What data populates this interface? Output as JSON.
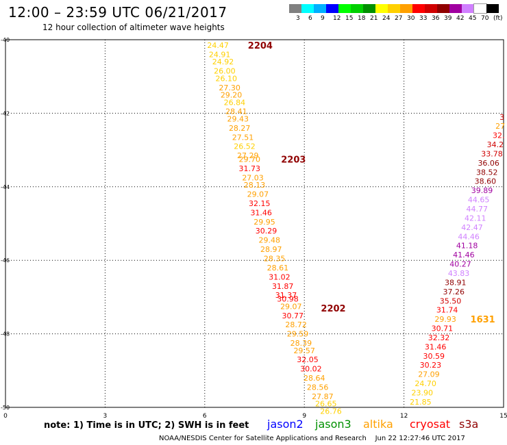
{
  "header": {
    "title": "12:00 – 23:59 UTC 06/21/2017",
    "subtitle": "12 hour collection of altimeter wave heights"
  },
  "colorbar": {
    "colors": [
      "#808080",
      "#00ffff",
      "#00b0ff",
      "#0000ff",
      "#00ff00",
      "#00d000",
      "#009000",
      "#ffff00",
      "#ffd000",
      "#ffa000",
      "#ff0000",
      "#d00000",
      "#900000",
      "#a000a0",
      "#d080ff",
      "#ffffff",
      "#000000"
    ],
    "labels": [
      "3",
      "6",
      "9",
      "12",
      "15",
      "18",
      "21",
      "24",
      "27",
      "30",
      "33",
      "36",
      "39",
      "42",
      "45",
      "70",
      "(ft)"
    ]
  },
  "footer": {
    "note": "note:  1) Time is in UTC;  2) SWH is in feet",
    "credit": "NOAA/NESDIS Center for Satellite Applications and Research",
    "timestamp": "Jun 22 12:27:46 UTC 2017"
  },
  "legend": [
    {
      "name": "jason2",
      "color": "#0000ff"
    },
    {
      "name": "jason3",
      "color": "#009000"
    },
    {
      "name": "altika",
      "color": "#ffa000"
    },
    {
      "name": "cryosat",
      "color": "#ff0000"
    },
    {
      "name": "s3a",
      "color": "#900000"
    }
  ],
  "chart_data": {
    "type": "scatter",
    "xlabel": "",
    "ylabel": "",
    "xlim": [
      0,
      15
    ],
    "ylim": [
      -50,
      -40
    ],
    "xticks": [
      "0",
      "3",
      "6",
      "9",
      "12",
      "15"
    ],
    "yticks": [
      "-40",
      "-42",
      "-44",
      "-46",
      "-48",
      "-50"
    ],
    "grid": true,
    "track_labels": [
      {
        "label": "2204",
        "x": 7.3,
        "y": -40.15,
        "color": "#900000"
      },
      {
        "label": "2203",
        "x": 8.3,
        "y": -43.25,
        "color": "#900000"
      },
      {
        "label": "2202",
        "x": 9.5,
        "y": -47.3,
        "color": "#900000"
      },
      {
        "label": "1631",
        "x": 14.0,
        "y": -47.6,
        "color": "#ffa000"
      }
    ],
    "tracks": [
      {
        "points": [
          {
            "x": 6.4,
            "y": -40.15,
            "v": "24.47"
          },
          {
            "x": 6.45,
            "y": -40.4,
            "v": "24.91"
          },
          {
            "x": 6.55,
            "y": -40.6,
            "v": "24.92"
          },
          {
            "x": 6.6,
            "y": -40.85,
            "v": "26.00"
          },
          {
            "x": 6.65,
            "y": -41.05,
            "v": "26.10"
          },
          {
            "x": 6.75,
            "y": -41.3,
            "v": "27.30"
          },
          {
            "x": 6.8,
            "y": -41.5,
            "v": "29.20"
          },
          {
            "x": 6.9,
            "y": -41.7,
            "v": "26.84"
          },
          {
            "x": 6.95,
            "y": -41.95,
            "v": "28.41"
          },
          {
            "x": 7.0,
            "y": -42.15,
            "v": "29.43"
          },
          {
            "x": 7.05,
            "y": -42.4,
            "v": "28.27"
          },
          {
            "x": 7.15,
            "y": -42.65,
            "v": "27.51"
          },
          {
            "x": 7.2,
            "y": -42.9,
            "v": "26.52"
          },
          {
            "x": 7.3,
            "y": -43.15,
            "v": "27.29"
          },
          {
            "x": 7.35,
            "y": -43.25,
            "v": "29.70"
          },
          {
            "x": 7.35,
            "y": -43.5,
            "v": "31.73"
          },
          {
            "x": 7.45,
            "y": -43.75,
            "v": "27.03"
          },
          {
            "x": 7.5,
            "y": -43.95,
            "v": "28.13"
          },
          {
            "x": 7.6,
            "y": -44.2,
            "v": "29.07"
          },
          {
            "x": 7.65,
            "y": -44.45,
            "v": "32.15"
          },
          {
            "x": 7.7,
            "y": -44.7,
            "v": "31.46"
          },
          {
            "x": 7.8,
            "y": -44.95,
            "v": "29.95"
          },
          {
            "x": 7.85,
            "y": -45.2,
            "v": "30.29"
          },
          {
            "x": 7.95,
            "y": -45.45,
            "v": "29.48"
          },
          {
            "x": 8.0,
            "y": -45.7,
            "v": "28.97"
          },
          {
            "x": 8.1,
            "y": -45.95,
            "v": "28.35"
          },
          {
            "x": 8.2,
            "y": -46.2,
            "v": "28.61"
          },
          {
            "x": 8.25,
            "y": -46.45,
            "v": "31.02"
          },
          {
            "x": 8.35,
            "y": -46.7,
            "v": "31.87"
          },
          {
            "x": 8.45,
            "y": -46.95,
            "v": "31.37"
          },
          {
            "x": 8.5,
            "y": -47.05,
            "v": "30.98"
          },
          {
            "x": 8.6,
            "y": -47.25,
            "v": "29.07"
          },
          {
            "x": 8.65,
            "y": -47.5,
            "v": "30.77"
          },
          {
            "x": 8.75,
            "y": -47.75,
            "v": "28.72"
          },
          {
            "x": 8.8,
            "y": -48.0,
            "v": "29.59"
          },
          {
            "x": 8.9,
            "y": -48.25,
            "v": "28.39"
          },
          {
            "x": 9.0,
            "y": -48.45,
            "v": "29.57"
          },
          {
            "x": 9.1,
            "y": -48.7,
            "v": "32.05"
          },
          {
            "x": 9.2,
            "y": -48.95,
            "v": "30.02"
          },
          {
            "x": 9.3,
            "y": -49.2,
            "v": "28.64"
          },
          {
            "x": 9.4,
            "y": -49.45,
            "v": "28.56"
          },
          {
            "x": 9.55,
            "y": -49.7,
            "v": "27.87"
          },
          {
            "x": 9.65,
            "y": -49.9,
            "v": "26.65"
          },
          {
            "x": 9.8,
            "y": -50.1,
            "v": "26.76"
          }
        ]
      },
      {
        "points": [
          {
            "x": 14.95,
            "y": -42.1,
            "v": "3"
          },
          {
            "x": 14.9,
            "y": -42.35,
            "v": "27"
          },
          {
            "x": 14.85,
            "y": -42.6,
            "v": "32."
          },
          {
            "x": 14.75,
            "y": -42.85,
            "v": "34.2"
          },
          {
            "x": 14.65,
            "y": -43.1,
            "v": "33.78"
          },
          {
            "x": 14.55,
            "y": -43.35,
            "v": "36.06"
          },
          {
            "x": 14.5,
            "y": -43.6,
            "v": "38.52"
          },
          {
            "x": 14.45,
            "y": -43.85,
            "v": "38.60"
          },
          {
            "x": 14.35,
            "y": -44.1,
            "v": "39.89"
          },
          {
            "x": 14.25,
            "y": -44.35,
            "v": "44.65"
          },
          {
            "x": 14.2,
            "y": -44.6,
            "v": "44.77"
          },
          {
            "x": 14.15,
            "y": -44.85,
            "v": "42.11"
          },
          {
            "x": 14.05,
            "y": -45.1,
            "v": "42.47"
          },
          {
            "x": 13.95,
            "y": -45.35,
            "v": "44.46"
          },
          {
            "x": 13.9,
            "y": -45.6,
            "v": "41.18"
          },
          {
            "x": 13.8,
            "y": -45.85,
            "v": "41.46"
          },
          {
            "x": 13.7,
            "y": -46.1,
            "v": "40.27"
          },
          {
            "x": 13.65,
            "y": -46.35,
            "v": "43.83"
          },
          {
            "x": 13.55,
            "y": -46.6,
            "v": "38.91"
          },
          {
            "x": 13.5,
            "y": -46.85,
            "v": "37.26"
          },
          {
            "x": 13.4,
            "y": -47.1,
            "v": "35.50"
          },
          {
            "x": 13.3,
            "y": -47.35,
            "v": "31.74"
          },
          {
            "x": 13.25,
            "y": -47.6,
            "v": "29.93"
          },
          {
            "x": 13.15,
            "y": -47.85,
            "v": "30.71"
          },
          {
            "x": 13.05,
            "y": -48.1,
            "v": "32.32"
          },
          {
            "x": 12.95,
            "y": -48.35,
            "v": "31.46"
          },
          {
            "x": 12.9,
            "y": -48.6,
            "v": "30.59"
          },
          {
            "x": 12.8,
            "y": -48.85,
            "v": "30.23"
          },
          {
            "x": 12.75,
            "y": -49.1,
            "v": "27.09"
          },
          {
            "x": 12.65,
            "y": -49.35,
            "v": "24.70"
          },
          {
            "x": 12.55,
            "y": -49.6,
            "v": "23.90"
          },
          {
            "x": 12.5,
            "y": -49.85,
            "v": "21.85"
          }
        ]
      }
    ]
  }
}
